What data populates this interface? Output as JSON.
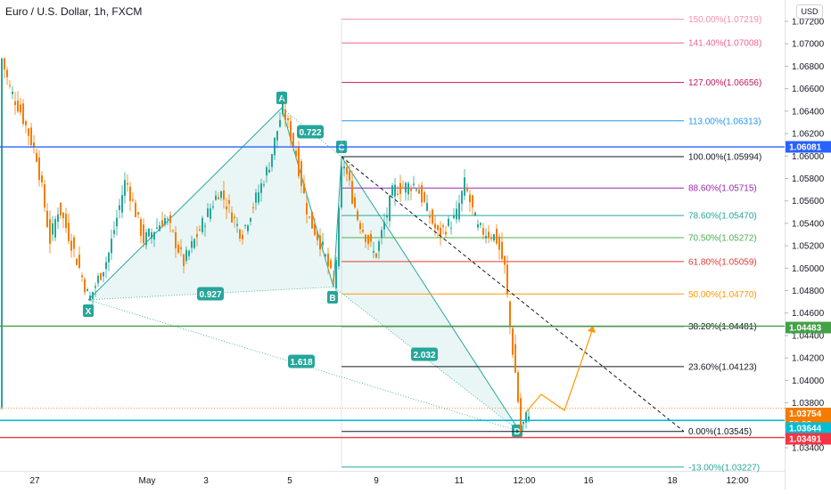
{
  "chart_data": {
    "type": "candlestick",
    "title": "Euro / U.S. Dollar, 1h, FXCM",
    "currency": "USD",
    "y_axis": {
      "ticks": [
        "1.07200",
        "1.07000",
        "1.06800",
        "1.06600",
        "1.06400",
        "1.06200",
        "1.06000",
        "1.05800",
        "1.05600",
        "1.05400",
        "1.05200",
        "1.05000",
        "1.04800",
        "1.04600",
        "1.04400",
        "1.04200",
        "1.04000",
        "1.03800",
        "1.03600",
        "1.03400"
      ],
      "range": [
        1.0332,
        1.0728
      ]
    },
    "x_axis": {
      "ticks": [
        "27",
        "May",
        "3",
        "5",
        "9",
        "11",
        "12:00",
        "16",
        "18",
        "12:00"
      ]
    },
    "price_tags": [
      {
        "label": "1.06081",
        "value": 1.06081,
        "color": "#2962ff"
      },
      {
        "label": "1.04483",
        "value": 1.04483,
        "color": "#43a047"
      },
      {
        "label": "1.03754",
        "value": 1.03754,
        "color": "#f57c00",
        "sub": "58:22"
      },
      {
        "label": "1.03644",
        "value": 1.03644,
        "color": "#00bcd4"
      },
      {
        "label": "1.03491",
        "value": 1.03491,
        "color": "#f23645"
      }
    ],
    "horizontal_lines": [
      {
        "value": 1.06081,
        "color": "#2962ff"
      },
      {
        "value": 1.04483,
        "color": "#43a047"
      },
      {
        "value": 1.03644,
        "color": "#00bcd4"
      },
      {
        "value": 1.03491,
        "color": "#f23645"
      },
      {
        "value": 1.03754,
        "color": "#f57c00",
        "dotted": true
      }
    ],
    "fib_levels": [
      {
        "label": "150.00%(1.07219)",
        "value": 1.07219,
        "color": "#f48fb1"
      },
      {
        "label": "141.40%(1.07008)",
        "value": 1.07008,
        "color": "#f06292"
      },
      {
        "label": "127.00%(1.06656)",
        "value": 1.06656,
        "color": "#c2185b"
      },
      {
        "label": "113.00%(1.06313)",
        "value": 1.06313,
        "color": "#2196f3"
      },
      {
        "label": "100.00%(1.05994)",
        "value": 1.05994,
        "color": "#131722"
      },
      {
        "label": "88.60%(1.05715)",
        "value": 1.05715,
        "color": "#9c27b0"
      },
      {
        "label": "78.60%(1.05470)",
        "value": 1.0547,
        "color": "#26a69a"
      },
      {
        "label": "70.50%(1.05272)",
        "value": 1.05272,
        "color": "#4caf50"
      },
      {
        "label": "61.80%(1.05059)",
        "value": 1.05059,
        "color": "#e53935"
      },
      {
        "label": "50.00%(1.04770)",
        "value": 1.0477,
        "color": "#ff9800"
      },
      {
        "label": "38.20%(1.04481)",
        "value": 1.04481,
        "color": "#131722"
      },
      {
        "label": "23.60%(1.04123)",
        "value": 1.04123,
        "color": "#131722"
      },
      {
        "label": "0.00%(1.03545)",
        "value": 1.03545,
        "color": "#131722"
      },
      {
        "label": "-13.00%(1.03227)",
        "value": 1.03227,
        "color": "#26a69a"
      }
    ],
    "harmonic_pattern": {
      "points": [
        {
          "label": "X",
          "value": 1.04718
        },
        {
          "label": "A",
          "value": 1.06428
        },
        {
          "label": "B",
          "value": 1.04833
        },
        {
          "label": "C",
          "value": 1.05994
        },
        {
          "label": "D",
          "value": 1.03545
        }
      ],
      "ratios": [
        {
          "label": "0.722"
        },
        {
          "label": "0.927"
        },
        {
          "label": "2.032"
        },
        {
          "label": "1.618"
        }
      ],
      "color": "#26a69a"
    }
  }
}
